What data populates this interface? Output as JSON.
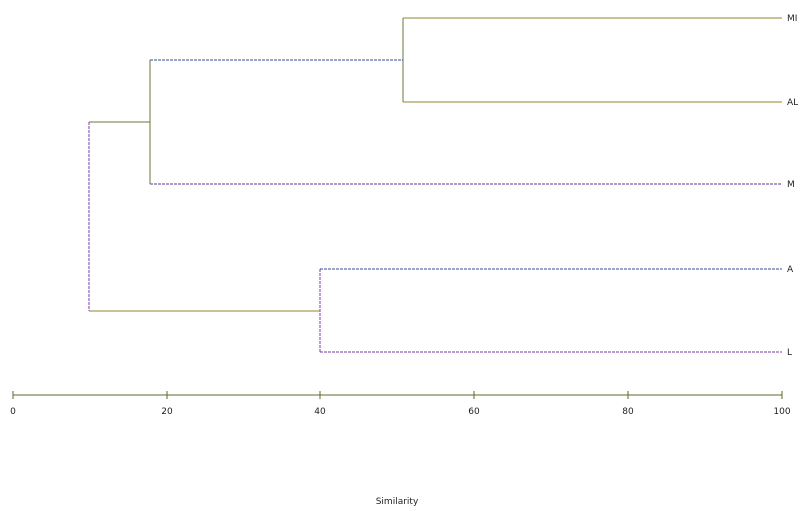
{
  "axis": {
    "title": "Similarity",
    "min": 0,
    "max": 100,
    "ticks": [
      "0",
      "20",
      "40",
      "60",
      "80",
      "100"
    ]
  },
  "leaves": [
    {
      "id": "MI",
      "label": "MI"
    },
    {
      "id": "AL",
      "label": "AL"
    },
    {
      "id": "M",
      "label": "M"
    },
    {
      "id": "A",
      "label": "A"
    },
    {
      "id": "L",
      "label": "L"
    }
  ],
  "merges": [
    {
      "id": "c_mi_al",
      "children": [
        "MI",
        "AL"
      ],
      "similarity": 51
    },
    {
      "id": "c_top",
      "children": [
        "c_mi_al",
        "M"
      ],
      "similarity": 18
    },
    {
      "id": "c_a_l",
      "children": [
        "A",
        "L"
      ],
      "similarity": 40
    },
    {
      "id": "c_root",
      "children": [
        "c_top",
        "c_a_l"
      ],
      "similarity": 10
    }
  ],
  "colors": {
    "olive": "#8c8a2a",
    "blue": "#2e4d8a",
    "purple": "#7a3aa8",
    "axis": "#5a6b2a"
  }
}
